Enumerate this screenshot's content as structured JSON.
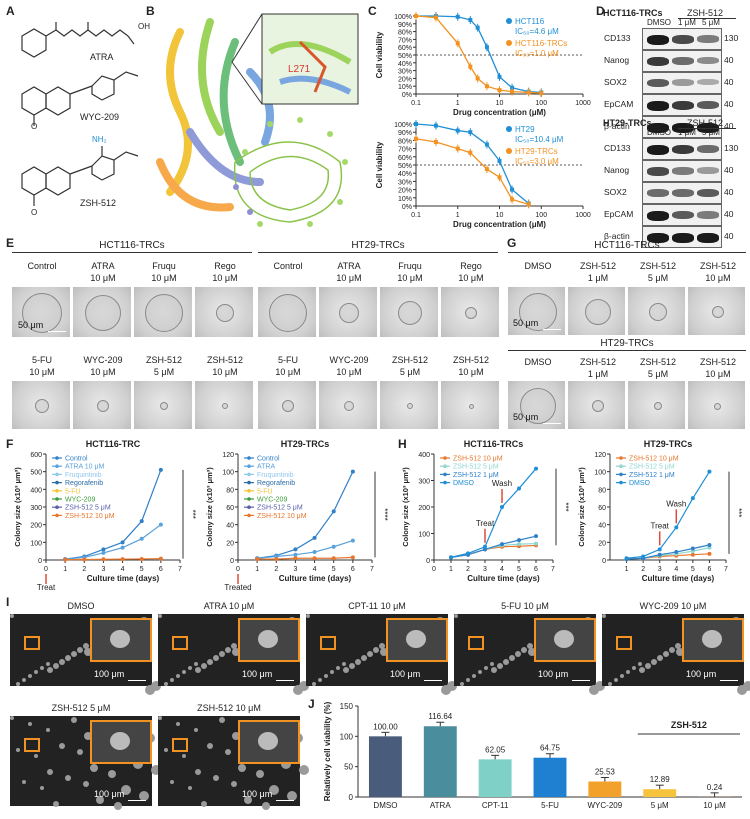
{
  "panels": {
    "A": "A",
    "B": "B",
    "C": "C",
    "D": "D",
    "E": "E",
    "F": "F",
    "G": "G",
    "H": "H",
    "I": "I",
    "J": "J"
  },
  "structures": [
    "ATRA",
    "WYC-209",
    "ZSH-512"
  ],
  "structure_text": {
    "oh": "OH",
    "o": "O",
    "nh2": "NH₂"
  },
  "docking_label": "L271",
  "chart_c1": {
    "title": "",
    "ylabel": "Cell viability",
    "xlabel": "Drug concentration (μM)",
    "yticks": [
      "0%",
      "10%",
      "20%",
      "30%",
      "40%",
      "50%",
      "60%",
      "70%",
      "80%",
      "90%",
      "100%"
    ],
    "xticks": [
      "0.1",
      "1",
      "10",
      "100",
      "1000"
    ],
    "legend": [
      {
        "name": "HCT116",
        "ic": "IC₅₀=4.6 μM",
        "color": "#1f8fd6"
      },
      {
        "name": "HCT116-TRCs",
        "ic": "IC₅₀=1.0 μM",
        "color": "#f29222"
      }
    ]
  },
  "chart_c2": {
    "ylabel": "Cell viability",
    "xlabel": "Drug concentration (μM)",
    "legend": [
      {
        "name": "HT29",
        "ic": "IC₅₀=10.4 μM",
        "color": "#1f8fd6"
      },
      {
        "name": "HT29-TRCs",
        "ic": "IC₅₀=3.0 μM",
        "color": "#f29222"
      }
    ]
  },
  "western": {
    "top": {
      "title": "HCT116-TRCs",
      "group": "ZSH-512",
      "cols": [
        "DMSO",
        "1 μM",
        "5 μM"
      ],
      "rows": [
        "CD133",
        "Nanog",
        "SOX2",
        "EpCAM",
        "β-actin"
      ],
      "kda": [
        "130",
        "40",
        "40",
        "40",
        "40"
      ]
    },
    "bot": {
      "title": "HT29-TRCs",
      "group": "ZSH-512",
      "cols": [
        "DMSO",
        "1 μM",
        "5 μM"
      ],
      "rows": [
        "CD133",
        "Nanog",
        "SOX2",
        "EpCAM",
        "β-actin"
      ],
      "kda": [
        "130",
        "40",
        "40",
        "40",
        "40"
      ]
    }
  },
  "panel_e": {
    "hct_title": "HCT116-TRCs",
    "ht_title": "HT29-TRCs",
    "row1": [
      "Control",
      "ATRA\n10 μM",
      "Fruqu\n10 μM",
      "Rego\n10 μM"
    ],
    "row2": [
      "5-FU\n10 μM",
      "WYC-209\n10 μM",
      "ZSH-512\n5 μM",
      "ZSH-512\n10 μM"
    ],
    "scale": "50 μm"
  },
  "panel_g": {
    "hct_title": "HCT116-TRCs",
    "ht_title": "HT29-TRCs",
    "cols": [
      "DMSO",
      "ZSH-512\n1 μM",
      "ZSH-512\n5 μM",
      "ZSH-512\n10 μM"
    ],
    "scale": "50 μm"
  },
  "panel_f": {
    "left": {
      "title": "HCT116-TRC",
      "ylabel": "Colony size (x10³ μm³)",
      "xlabel": "Culture time (days)",
      "yticks": [
        "0",
        "100",
        "200",
        "300",
        "400",
        "500",
        "600"
      ],
      "xticks": [
        "0",
        "1",
        "2",
        "3",
        "4",
        "5",
        "6",
        "7"
      ],
      "treat": "Treat",
      "sig": "***",
      "legend": [
        "Control",
        "ATRA 10 μM",
        "Fruquintinib",
        "Regorafenib",
        "5-FU",
        "WYC-209",
        "ZSH-512 5 μM",
        "ZSH-512 10 μM"
      ]
    },
    "right": {
      "title": "HT29-TRCs",
      "ylabel": "Colony size (x10³ μm³)",
      "xlabel": "Culture time (days)",
      "yticks": [
        "0",
        "20",
        "40",
        "60",
        "80",
        "100",
        "120"
      ],
      "xticks": [
        "0",
        "1",
        "2",
        "3",
        "4",
        "5",
        "6",
        "7"
      ],
      "treat": "Treated",
      "sig": "****",
      "legend": [
        "Control",
        "ATRA",
        "Fruquintinib",
        "Regorafenib",
        "5-FU",
        "WYC-209",
        "ZSH-512 5 μM",
        "ZSH-512 10 μM"
      ]
    }
  },
  "panel_h": {
    "left": {
      "title": "HCT116-TRCs",
      "ylabel": "Colony size (x10³ μm³)",
      "xlabel": "Culture time (days)",
      "yticks": [
        "0",
        "100",
        "200",
        "300",
        "400"
      ],
      "xticks": [
        "0",
        "1",
        "2",
        "3",
        "4",
        "5",
        "6",
        "7"
      ],
      "treat": "Treat",
      "wash": "Wash",
      "sig": "***",
      "legend": [
        "ZSH-512 10 μM",
        "ZSH-512 5 μM",
        "ZSH-512 1 μM",
        "DMSO"
      ]
    },
    "right": {
      "title": "HT29-TRCs",
      "ylabel": "Colony size (x10³ μm³)",
      "xlabel": "Culture time (days)",
      "yticks": [
        "0",
        "20",
        "40",
        "60",
        "80",
        "100",
        "120"
      ],
      "xticks": [
        "1",
        "2",
        "3",
        "4",
        "5",
        "6",
        "7"
      ],
      "treat": "Treat",
      "wash": "Wash",
      "sig": "***",
      "legend": [
        "ZSH-512 10 μM",
        "ZSH-512 5 μM",
        "ZSH-512 1 μM",
        "DMSO"
      ]
    }
  },
  "panel_i": {
    "row1": [
      "DMSO",
      "ATRA 10 μM",
      "CPT-11 10 μM",
      "5-FU 10 μM",
      "WYC-209 10 μM"
    ],
    "row2": [
      "ZSH-512 5 μM",
      "ZSH-512 10 μM"
    ],
    "scale": "100 μm"
  },
  "chart_data": [
    {
      "type": "line",
      "title": "",
      "x": [
        0.1,
        0.3,
        1,
        2,
        3,
        5,
        10,
        20,
        50,
        100
      ],
      "series": [
        {
          "name": "HCT116",
          "values": [
            100,
            100,
            99,
            95,
            85,
            60,
            22,
            8,
            3,
            2
          ]
        },
        {
          "name": "HCT116-TRCs",
          "values": [
            100,
            98,
            65,
            35,
            20,
            10,
            5,
            3,
            2,
            1
          ]
        }
      ],
      "xlabel": "Drug concentration (μM)",
      "ylabel": "Cell viability",
      "xscale": "log",
      "ylim": [
        0,
        100
      ]
    },
    {
      "type": "line",
      "x": [
        0.1,
        0.3,
        1,
        2,
        5,
        10,
        20,
        50
      ],
      "series": [
        {
          "name": "HT29",
          "values": [
            100,
            98,
            92,
            90,
            75,
            55,
            20,
            3
          ]
        },
        {
          "name": "HT29-TRCs",
          "values": [
            82,
            78,
            70,
            65,
            45,
            35,
            8,
            2
          ]
        }
      ],
      "xlabel": "Drug concentration (μM)",
      "ylabel": "Cell viability",
      "xscale": "log",
      "ylim": [
        0,
        100
      ]
    },
    {
      "type": "line",
      "title": "HCT116-TRC",
      "x": [
        1,
        2,
        3,
        4,
        5,
        6
      ],
      "series": [
        {
          "name": "Control",
          "values": [
            5,
            20,
            60,
            100,
            220,
            510
          ]
        },
        {
          "name": "ATRA 10 μM",
          "values": [
            5,
            15,
            40,
            70,
            120,
            200
          ]
        },
        {
          "name": "ZSH-512 10 μM",
          "values": [
            2,
            3,
            4,
            5,
            6,
            8
          ]
        }
      ],
      "xlabel": "Culture time (days)",
      "ylabel": "Colony size (x10³ μm³)",
      "ylim": [
        0,
        600
      ]
    },
    {
      "type": "line",
      "title": "HT29-TRCs",
      "x": [
        1,
        2,
        3,
        4,
        5,
        6
      ],
      "series": [
        {
          "name": "Control",
          "values": [
            2,
            5,
            12,
            25,
            55,
            100
          ]
        },
        {
          "name": "ATRA",
          "values": [
            2,
            4,
            6,
            9,
            15,
            22
          ]
        },
        {
          "name": "ZSH-512 10 μM",
          "values": [
            1,
            1,
            2,
            2,
            2,
            3
          ]
        }
      ],
      "xlabel": "Culture time (days)",
      "ylabel": "Colony size (x10³ μm³)",
      "ylim": [
        0,
        120
      ]
    },
    {
      "type": "line",
      "title": "HCT116-TRCs",
      "x": [
        1,
        2,
        3,
        4,
        5,
        6
      ],
      "series": [
        {
          "name": "ZSH-512 10 μM",
          "values": [
            10,
            20,
            40,
            50,
            52,
            55
          ]
        },
        {
          "name": "ZSH-512 5 μM",
          "values": [
            10,
            20,
            40,
            55,
            60,
            62
          ]
        },
        {
          "name": "ZSH-512 1 μM",
          "values": [
            10,
            20,
            40,
            60,
            75,
            90
          ]
        },
        {
          "name": "DMSO",
          "values": [
            10,
            25,
            50,
            200,
            270,
            345
          ]
        }
      ],
      "xlabel": "Culture time (days)",
      "ylabel": "Colony size (x10³ μm³)",
      "ylim": [
        0,
        400
      ]
    },
    {
      "type": "line",
      "title": "HT29-TRCs",
      "x": [
        1,
        2,
        3,
        4,
        5,
        6
      ],
      "series": [
        {
          "name": "ZSH-512 10 μM",
          "values": [
            1,
            2,
            4,
            5,
            6,
            7
          ]
        },
        {
          "name": "ZSH-512 5 μM",
          "values": [
            1,
            2,
            5,
            7,
            10,
            14
          ]
        },
        {
          "name": "ZSH-512 1 μM",
          "values": [
            1,
            2,
            6,
            9,
            13,
            17
          ]
        },
        {
          "name": "DMSO",
          "values": [
            2,
            4,
            12,
            37,
            70,
            100
          ]
        }
      ],
      "xlabel": "Culture time (days)",
      "ylabel": "Colony size (x10³ μm³)",
      "ylim": [
        0,
        120
      ]
    },
    {
      "type": "bar",
      "title": "",
      "categories": [
        "DMSO",
        "ATRA",
        "CPT-11",
        "5-FU",
        "WYC-209",
        "5 μM",
        "10 μM"
      ],
      "values": [
        100.0,
        116.64,
        62.05,
        64.75,
        25.53,
        12.89,
        0.24
      ],
      "labels": [
        "100.00",
        "116.64",
        "62.05",
        "64.75",
        "25.53",
        "12.89",
        "0.24"
      ],
      "colors": [
        "#4a5c7c",
        "#4a8d9c",
        "#7fd1c8",
        "#1f7fd0",
        "#f2a12b",
        "#f6c33c",
        "#e06a2c"
      ],
      "group": "ZSH-512",
      "ylabel": "Relatively cell viability (%)",
      "ylim": [
        0,
        150
      ],
      "yticks": [
        "0",
        "50",
        "100",
        "150"
      ]
    }
  ]
}
